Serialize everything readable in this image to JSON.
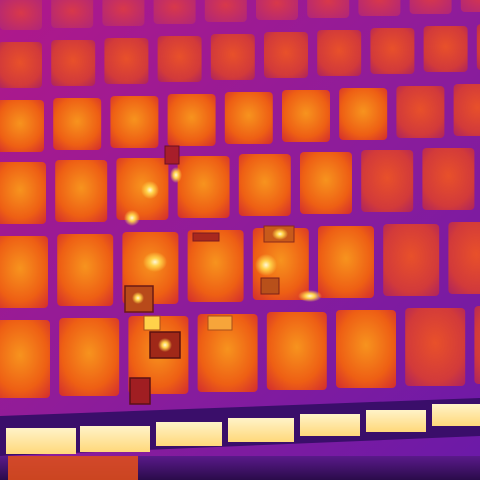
{
  "image": {
    "subject": "thermal-infrared-solar-panel-array",
    "palette": [
      "#1a0636",
      "#5a1a8a",
      "#b8219f",
      "#e0303a",
      "#f05a14",
      "#f7931e",
      "#ffd24a",
      "#fff3c8"
    ],
    "hotspot_count": 11
  }
}
